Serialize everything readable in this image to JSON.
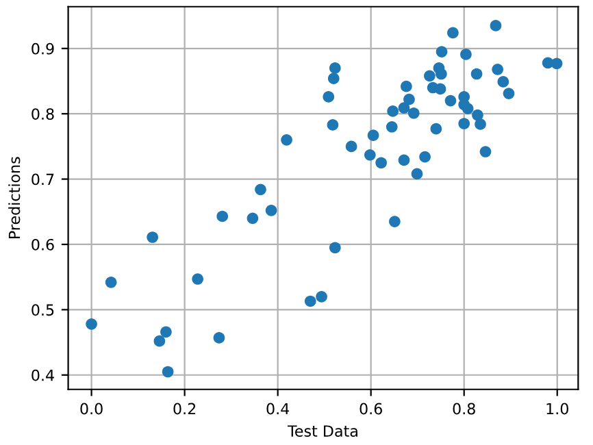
{
  "chart_data": {
    "type": "scatter",
    "xlabel": "Test Data",
    "ylabel": "Predictions",
    "x": [
      0.0,
      0.042,
      0.131,
      0.146,
      0.16,
      0.164,
      0.228,
      0.274,
      0.281,
      0.346,
      0.363,
      0.386,
      0.419,
      0.47,
      0.494,
      0.509,
      0.518,
      0.52,
      0.523,
      0.523,
      0.558,
      0.598,
      0.605,
      0.622,
      0.645,
      0.647,
      0.651,
      0.671,
      0.671,
      0.676,
      0.682,
      0.692,
      0.699,
      0.716,
      0.726,
      0.733,
      0.74,
      0.746,
      0.749,
      0.751,
      0.752,
      0.771,
      0.776,
      0.8,
      0.8,
      0.8,
      0.804,
      0.808,
      0.827,
      0.829,
      0.835,
      0.846,
      0.868,
      0.872,
      0.884,
      0.896,
      0.98,
      0.999
    ],
    "series": [
      {
        "color": "#1f77b4",
        "values": [
          0.478,
          0.542,
          0.611,
          0.452,
          0.466,
          0.405,
          0.547,
          0.457,
          0.643,
          0.64,
          0.684,
          0.652,
          0.76,
          0.513,
          0.52,
          0.826,
          0.783,
          0.854,
          0.87,
          0.595,
          0.75,
          0.737,
          0.767,
          0.725,
          0.78,
          0.804,
          0.635,
          0.729,
          0.809,
          0.842,
          0.822,
          0.801,
          0.708,
          0.734,
          0.858,
          0.84,
          0.777,
          0.87,
          0.838,
          0.861,
          0.895,
          0.82,
          0.924,
          0.826,
          0.814,
          0.785,
          0.891,
          0.808,
          0.861,
          0.798,
          0.784,
          0.742,
          0.935,
          0.868,
          0.849,
          0.831,
          0.878,
          0.877
        ]
      }
    ],
    "xlim": [
      -0.05,
      1.045
    ],
    "ylim": [
      0.378,
      0.964
    ],
    "xticks": [
      {
        "value": 0,
        "label": "0.0"
      },
      0.2,
      0.4,
      0.6,
      0.8,
      {
        "value": 1,
        "label": "1.0"
      }
    ],
    "yticks": [
      0.4,
      0.5,
      0.6,
      0.7,
      0.8,
      0.9
    ],
    "grid": true,
    "marker": "circle"
  }
}
